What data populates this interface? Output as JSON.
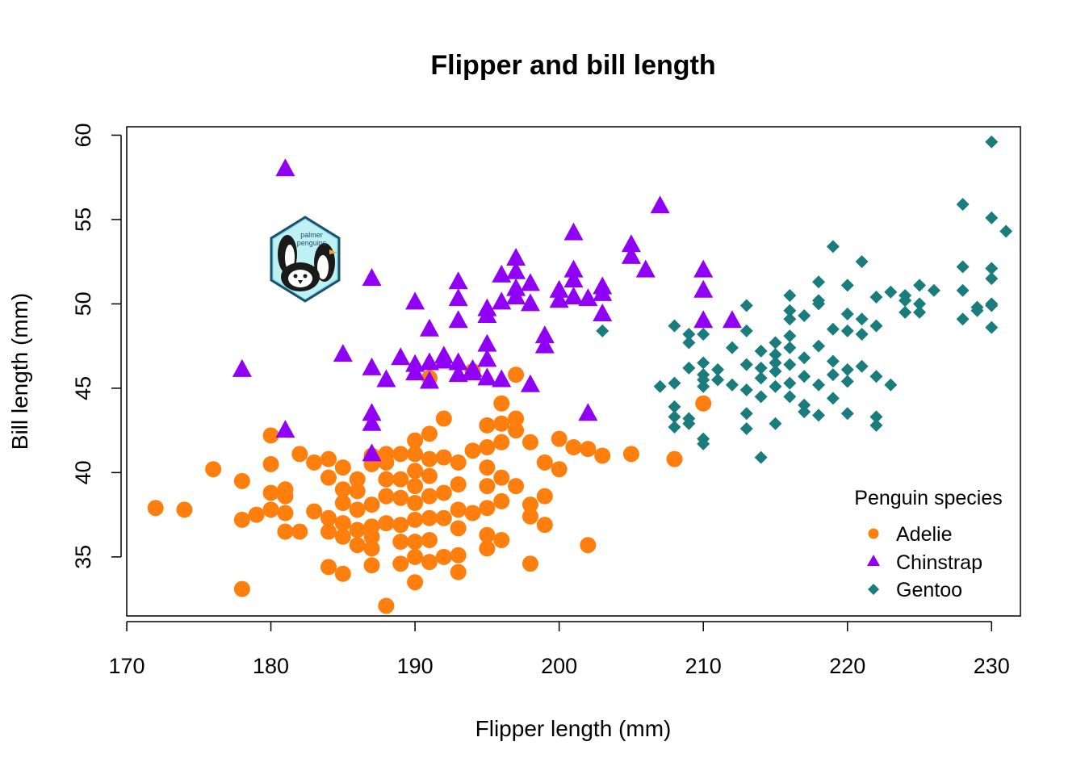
{
  "chart_data": {
    "type": "scatter",
    "title": "Flipper and bill length",
    "xlabel": "Flipper length (mm)",
    "ylabel": "Bill length (mm)",
    "xlim": [
      170,
      232
    ],
    "ylim": [
      31.5,
      60.5
    ],
    "x_ticks": [
      170,
      180,
      190,
      200,
      210,
      220,
      230
    ],
    "y_ticks": [
      35,
      40,
      45,
      50,
      55,
      60
    ],
    "grid": false,
    "legend": {
      "title": "Penguin species",
      "position": "bottom-right",
      "entries": [
        "Adelie",
        "Chinstrap",
        "Gentoo"
      ]
    },
    "logo": {
      "icon": "palmer-penguins-logo-icon",
      "text": [
        "palmer",
        "penguins"
      ]
    },
    "series": [
      {
        "name": "Adelie",
        "color": "#ff7f0e",
        "marker": "circle",
        "points": [
          [
            172,
            37.9
          ],
          [
            174,
            37.8
          ],
          [
            176,
            40.2
          ],
          [
            178,
            33.1
          ],
          [
            178,
            37.2
          ],
          [
            178,
            39.5
          ],
          [
            179,
            37.5
          ],
          [
            180,
            38.8
          ],
          [
            180,
            40.5
          ],
          [
            180,
            42.2
          ],
          [
            180,
            37.8
          ],
          [
            181,
            36.5
          ],
          [
            181,
            37.6
          ],
          [
            181,
            38.6
          ],
          [
            181,
            39.0
          ],
          [
            182,
            36.5
          ],
          [
            182,
            41.1
          ],
          [
            183,
            37.7
          ],
          [
            183,
            40.6
          ],
          [
            184,
            34.4
          ],
          [
            184,
            36.5
          ],
          [
            184,
            37.3
          ],
          [
            184,
            39.7
          ],
          [
            184,
            40.8
          ],
          [
            185,
            34.0
          ],
          [
            185,
            36.2
          ],
          [
            185,
            37.0
          ],
          [
            185,
            38.2
          ],
          [
            185,
            39.0
          ],
          [
            185,
            40.3
          ],
          [
            186,
            35.7
          ],
          [
            186,
            37.8
          ],
          [
            186,
            38.9
          ],
          [
            186,
            39.6
          ],
          [
            186,
            36.6
          ],
          [
            187,
            34.5
          ],
          [
            187,
            35.5
          ],
          [
            187,
            36.2
          ],
          [
            187,
            36.8
          ],
          [
            187,
            38.1
          ],
          [
            187,
            40.5
          ],
          [
            187,
            41.0
          ],
          [
            188,
            32.1
          ],
          [
            188,
            37.0
          ],
          [
            188,
            38.6
          ],
          [
            188,
            39.6
          ],
          [
            188,
            40.6
          ],
          [
            188,
            41.1
          ],
          [
            189,
            34.6
          ],
          [
            189,
            35.9
          ],
          [
            189,
            36.9
          ],
          [
            189,
            38.5
          ],
          [
            189,
            39.6
          ],
          [
            189,
            41.1
          ],
          [
            190,
            33.5
          ],
          [
            190,
            35.0
          ],
          [
            190,
            35.9
          ],
          [
            190,
            37.2
          ],
          [
            190,
            38.2
          ],
          [
            190,
            39.2
          ],
          [
            190,
            40.1
          ],
          [
            190,
            41.1
          ],
          [
            190,
            41.9
          ],
          [
            191,
            34.7
          ],
          [
            191,
            36.0
          ],
          [
            191,
            37.3
          ],
          [
            191,
            38.6
          ],
          [
            191,
            39.8
          ],
          [
            191,
            40.8
          ],
          [
            191,
            42.3
          ],
          [
            191,
            45.6
          ],
          [
            192,
            35.0
          ],
          [
            192,
            37.3
          ],
          [
            192,
            38.8
          ],
          [
            192,
            40.9
          ],
          [
            192,
            43.2
          ],
          [
            193,
            34.1
          ],
          [
            193,
            35.1
          ],
          [
            193,
            36.7
          ],
          [
            193,
            37.8
          ],
          [
            193,
            39.3
          ],
          [
            193,
            40.6
          ],
          [
            194,
            37.6
          ],
          [
            194,
            41.3
          ],
          [
            194,
            46.0
          ],
          [
            195,
            35.5
          ],
          [
            195,
            36.3
          ],
          [
            195,
            37.9
          ],
          [
            195,
            39.2
          ],
          [
            195,
            40.3
          ],
          [
            195,
            41.5
          ],
          [
            195,
            42.8
          ],
          [
            196,
            36.0
          ],
          [
            196,
            38.3
          ],
          [
            196,
            39.7
          ],
          [
            196,
            41.8
          ],
          [
            196,
            42.9
          ],
          [
            196,
            44.1
          ],
          [
            197,
            39.2
          ],
          [
            197,
            42.5
          ],
          [
            197,
            43.2
          ],
          [
            197,
            45.8
          ],
          [
            198,
            34.6
          ],
          [
            198,
            37.4
          ],
          [
            198,
            38.1
          ],
          [
            198,
            41.8
          ],
          [
            199,
            36.9
          ],
          [
            199,
            38.6
          ],
          [
            199,
            40.6
          ],
          [
            200,
            40.2
          ],
          [
            200,
            42.0
          ],
          [
            201,
            41.5
          ],
          [
            202,
            35.7
          ],
          [
            202,
            41.4
          ],
          [
            203,
            41.0
          ],
          [
            205,
            41.1
          ],
          [
            208,
            40.8
          ],
          [
            210,
            44.1
          ]
        ]
      },
      {
        "name": "Chinstrap",
        "color": "#8f00f5",
        "marker": "triangle",
        "points": [
          [
            178,
            46.1
          ],
          [
            181,
            42.5
          ],
          [
            181,
            58.0
          ],
          [
            185,
            47.0
          ],
          [
            187,
            41.1
          ],
          [
            187,
            42.9
          ],
          [
            187,
            43.5
          ],
          [
            187,
            46.2
          ],
          [
            187,
            51.5
          ],
          [
            188,
            45.5
          ],
          [
            189,
            46.8
          ],
          [
            190,
            45.9
          ],
          [
            190,
            46.4
          ],
          [
            190,
            50.1
          ],
          [
            191,
            45.4
          ],
          [
            191,
            46.5
          ],
          [
            191,
            48.5
          ],
          [
            192,
            46.6
          ],
          [
            192,
            46.9
          ],
          [
            193,
            45.8
          ],
          [
            193,
            46.5
          ],
          [
            193,
            49.0
          ],
          [
            193,
            50.3
          ],
          [
            193,
            51.3
          ],
          [
            194,
            45.9
          ],
          [
            194,
            46.1
          ],
          [
            195,
            45.6
          ],
          [
            195,
            46.7
          ],
          [
            195,
            47.6
          ],
          [
            195,
            49.3
          ],
          [
            195,
            49.7
          ],
          [
            196,
            45.5
          ],
          [
            196,
            50.1
          ],
          [
            196,
            51.7
          ],
          [
            197,
            50.4
          ],
          [
            197,
            50.9
          ],
          [
            197,
            51.9
          ],
          [
            197,
            52.7
          ],
          [
            198,
            45.2
          ],
          [
            198,
            50.0
          ],
          [
            198,
            51.2
          ],
          [
            199,
            47.5
          ],
          [
            199,
            48.1
          ],
          [
            200,
            50.2
          ],
          [
            200,
            50.8
          ],
          [
            201,
            50.4
          ],
          [
            201,
            51.4
          ],
          [
            201,
            52.0
          ],
          [
            201,
            54.2
          ],
          [
            202,
            43.5
          ],
          [
            202,
            50.3
          ],
          [
            203,
            49.4
          ],
          [
            203,
            50.6
          ],
          [
            203,
            51.0
          ],
          [
            205,
            52.8
          ],
          [
            205,
            53.5
          ],
          [
            206,
            52.0
          ],
          [
            207,
            55.8
          ],
          [
            210,
            49.0
          ],
          [
            210,
            50.8
          ],
          [
            210,
            52.0
          ],
          [
            212,
            49.0
          ]
        ]
      },
      {
        "name": "Gentoo",
        "color": "#1a7c7c",
        "marker": "diamond",
        "points": [
          [
            203,
            48.4
          ],
          [
            207,
            45.1
          ],
          [
            208,
            42.7
          ],
          [
            208,
            43.3
          ],
          [
            208,
            43.9
          ],
          [
            208,
            45.3
          ],
          [
            208,
            48.7
          ],
          [
            209,
            42.9
          ],
          [
            209,
            43.2
          ],
          [
            209,
            46.2
          ],
          [
            209,
            47.7
          ],
          [
            209,
            48.2
          ],
          [
            210,
            41.7
          ],
          [
            210,
            42.0
          ],
          [
            210,
            45.1
          ],
          [
            210,
            45.5
          ],
          [
            210,
            45.8
          ],
          [
            210,
            46.5
          ],
          [
            210,
            48.2
          ],
          [
            211,
            45.5
          ],
          [
            211,
            46.1
          ],
          [
            212,
            45.2
          ],
          [
            212,
            47.4
          ],
          [
            213,
            42.6
          ],
          [
            213,
            43.5
          ],
          [
            213,
            44.9
          ],
          [
            213,
            46.4
          ],
          [
            213,
            48.4
          ],
          [
            213,
            49.9
          ],
          [
            214,
            40.9
          ],
          [
            214,
            44.5
          ],
          [
            214,
            45.6
          ],
          [
            214,
            46.2
          ],
          [
            214,
            47.2
          ],
          [
            215,
            42.9
          ],
          [
            215,
            45.1
          ],
          [
            215,
            46.0
          ],
          [
            215,
            46.5
          ],
          [
            215,
            47.0
          ],
          [
            215,
            47.7
          ],
          [
            216,
            44.5
          ],
          [
            216,
            45.3
          ],
          [
            216,
            46.4
          ],
          [
            216,
            47.4
          ],
          [
            216,
            48.1
          ],
          [
            216,
            49.1
          ],
          [
            216,
            49.6
          ],
          [
            216,
            50.5
          ],
          [
            217,
            43.6
          ],
          [
            217,
            44.0
          ],
          [
            217,
            45.7
          ],
          [
            217,
            46.8
          ],
          [
            217,
            49.3
          ],
          [
            218,
            43.4
          ],
          [
            218,
            45.2
          ],
          [
            218,
            47.5
          ],
          [
            218,
            50.0
          ],
          [
            218,
            50.2
          ],
          [
            218,
            51.3
          ],
          [
            219,
            44.4
          ],
          [
            219,
            45.8
          ],
          [
            219,
            46.6
          ],
          [
            219,
            48.5
          ],
          [
            219,
            53.4
          ],
          [
            220,
            43.5
          ],
          [
            220,
            45.4
          ],
          [
            220,
            46.1
          ],
          [
            220,
            48.4
          ],
          [
            220,
            49.4
          ],
          [
            220,
            51.1
          ],
          [
            221,
            46.3
          ],
          [
            221,
            48.2
          ],
          [
            221,
            49.1
          ],
          [
            221,
            52.5
          ],
          [
            222,
            42.8
          ],
          [
            222,
            43.3
          ],
          [
            222,
            45.7
          ],
          [
            222,
            48.7
          ],
          [
            222,
            50.4
          ],
          [
            223,
            45.2
          ],
          [
            223,
            50.7
          ],
          [
            224,
            49.5
          ],
          [
            224,
            50.2
          ],
          [
            224,
            50.5
          ],
          [
            225,
            49.5
          ],
          [
            225,
            50.0
          ],
          [
            225,
            51.1
          ],
          [
            226,
            50.8
          ],
          [
            228,
            49.1
          ],
          [
            228,
            50.8
          ],
          [
            228,
            52.2
          ],
          [
            228,
            55.9
          ],
          [
            229,
            49.6
          ],
          [
            229,
            49.8
          ],
          [
            230,
            48.6
          ],
          [
            230,
            49.9
          ],
          [
            230,
            50.0
          ],
          [
            230,
            51.5
          ],
          [
            230,
            52.1
          ],
          [
            230,
            55.1
          ],
          [
            230,
            59.6
          ],
          [
            231,
            54.3
          ]
        ]
      }
    ]
  }
}
